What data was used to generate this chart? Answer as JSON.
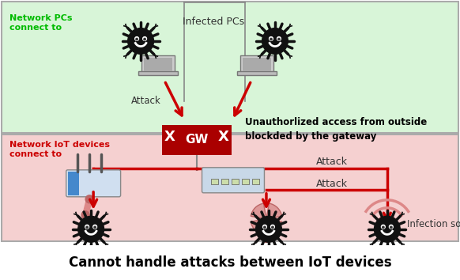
{
  "fig_width": 5.82,
  "fig_height": 3.54,
  "dpi": 100,
  "bg_color": "#ffffff",
  "top_zone_color": "#d8f5d8",
  "bottom_zone_color": "#f5d0d0",
  "border_color": "#aaaaaa",
  "gateway_color": "#aa0000",
  "arrow_color": "#cc0000",
  "line_color": "#cc0000",
  "struct_line_color": "#888888",
  "title_text": "Cannot handle attacks between IoT devices",
  "title_fontsize": 12,
  "top_label": "Network PCs\nconnect to",
  "top_label_color": "#00bb00",
  "bottom_label": "Network IoT devices\nconnect to",
  "bottom_label_color": "#cc0000",
  "infected_pcs_label": "Infected PCs",
  "attack_label": "Attack",
  "unauthorized_text": "Unauthorlized access from outside\nblockded by the gateway",
  "infection_source_text": "Infection source"
}
